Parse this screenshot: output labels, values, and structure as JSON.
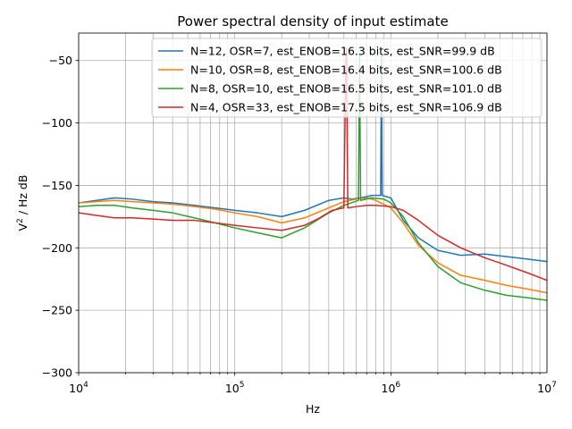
{
  "chart_data": {
    "type": "line",
    "title": "Power spectral density of input estimate",
    "xlabel": "Hz",
    "ylabel_base": "V",
    "ylabel_exp": "2",
    "ylabel_rest": " / Hz dB",
    "xscale": "log",
    "xlim": [
      10000,
      10000000
    ],
    "ylim": [
      -300,
      -28
    ],
    "x_ticks": [
      {
        "value": 10000,
        "base": "10",
        "exp": "4"
      },
      {
        "value": 100000,
        "base": "10",
        "exp": "5"
      },
      {
        "value": 1000000,
        "base": "10",
        "exp": "6"
      },
      {
        "value": 10000000,
        "base": "10",
        "exp": "7"
      }
    ],
    "y_ticks": [
      {
        "value": -50,
        "label": "−50"
      },
      {
        "value": -100,
        "label": "−100"
      },
      {
        "value": -150,
        "label": "−150"
      },
      {
        "value": -200,
        "label": "−200"
      },
      {
        "value": -250,
        "label": "−250"
      },
      {
        "value": -300,
        "label": "−300"
      }
    ],
    "grid": "major and minor x, major y",
    "legend_position": "top-right",
    "series": [
      {
        "name": "N=12, OSR=7, est_ENOB=16.3 bits, est_SNR=99.9 dB",
        "color": "#1f77b4",
        "x": [
          10000,
          13000,
          17000,
          22000,
          30000,
          40000,
          55000,
          75000,
          100000,
          140000,
          200000,
          280000,
          400000,
          500000,
          560000,
          640000,
          760000,
          860000,
          870000,
          880000,
          1000000,
          1200000,
          1500000,
          2000000,
          2800000,
          4000000,
          5500000,
          7500000,
          10000000
        ],
        "values": [
          -164,
          -162,
          -160,
          -161,
          -163,
          -164,
          -166,
          -168,
          -170,
          -172,
          -175,
          -170,
          -162,
          -160,
          -161,
          -160,
          -158,
          -158,
          -45,
          -158,
          -160,
          -178,
          -192,
          -202,
          -206,
          -205,
          -207,
          -209,
          -211
        ]
      },
      {
        "name": "N=10, OSR=8, est_ENOB=16.4 bits, est_SNR=100.6 dB",
        "color": "#ff7f0e",
        "x": [
          10000,
          13000,
          17000,
          22000,
          30000,
          40000,
          55000,
          75000,
          100000,
          140000,
          200000,
          280000,
          400000,
          500000,
          600000,
          700000,
          800000,
          1000000,
          1200000,
          1500000,
          2000000,
          2800000,
          4000000,
          5500000,
          7500000,
          10000000
        ],
        "values": [
          -164,
          -163,
          -162,
          -163,
          -164,
          -165,
          -167,
          -169,
          -172,
          -175,
          -180,
          -176,
          -168,
          -163,
          -161,
          -160,
          -162,
          -168,
          -180,
          -198,
          -212,
          -222,
          -226,
          -230,
          -233,
          -236
        ]
      },
      {
        "name": "N=8, OSR=10, est_ENOB=16.5 bits, est_SNR=101.0 dB",
        "color": "#2ca02c",
        "x": [
          10000,
          13000,
          17000,
          22000,
          30000,
          40000,
          55000,
          75000,
          100000,
          140000,
          200000,
          280000,
          400000,
          500000,
          620000,
          630000,
          640000,
          750000,
          900000,
          1000000,
          1200000,
          1500000,
          2000000,
          2800000,
          4000000,
          5500000,
          7500000,
          10000000
        ],
        "values": [
          -167,
          -166,
          -166,
          -168,
          -170,
          -172,
          -176,
          -180,
          -184,
          -188,
          -192,
          -184,
          -172,
          -166,
          -162,
          -45,
          -162,
          -160,
          -161,
          -164,
          -175,
          -196,
          -215,
          -228,
          -234,
          -238,
          -240,
          -242
        ]
      },
      {
        "name": "N=4, OSR=33, est_ENOB=17.5 bits, est_SNR=106.9 dB",
        "color": "#d62728",
        "x": [
          10000,
          13000,
          17000,
          22000,
          30000,
          40000,
          55000,
          75000,
          100000,
          140000,
          200000,
          280000,
          350000,
          420000,
          500000,
          515000,
          520000,
          530000,
          600000,
          700000,
          800000,
          1000000,
          1200000,
          1500000,
          2000000,
          2800000,
          4000000,
          5500000,
          7500000,
          10000000
        ],
        "values": [
          -172,
          -174,
          -176,
          -176,
          -177,
          -178,
          -178,
          -180,
          -182,
          -184,
          -186,
          -182,
          -176,
          -170,
          -168,
          -48,
          -40,
          -168,
          -167,
          -166,
          -166,
          -167,
          -170,
          -178,
          -190,
          -200,
          -208,
          -214,
          -220,
          -226
        ]
      }
    ]
  }
}
